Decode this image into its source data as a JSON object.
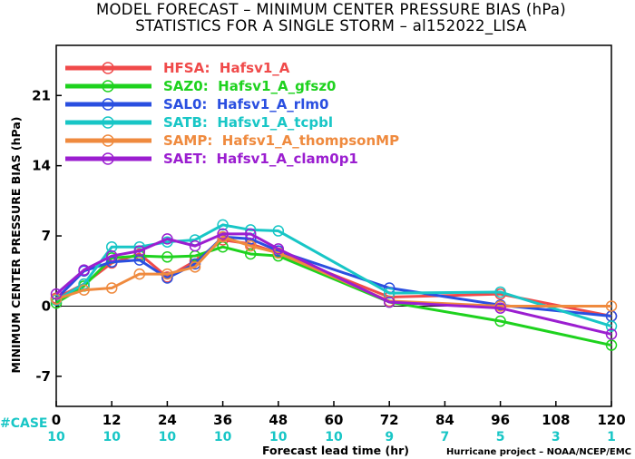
{
  "chart_data": {
    "type": "line",
    "title": "MODEL FORECAST – MINIMUM CENTER PRESSURE BIAS (hPa)",
    "subtitle": "STATISTICS FOR A SINGLE STORM – al152022_LISA",
    "xlabel": "Forecast lead time (hr)",
    "ylabel": "MINIMUM CENTER PRESSURE BIAS (hPa)",
    "xlim": [
      0,
      120
    ],
    "ylim": [
      -10,
      26
    ],
    "x_ticks": [
      0,
      12,
      24,
      36,
      48,
      60,
      72,
      84,
      96,
      108,
      120
    ],
    "y_ticks": [
      -7,
      0,
      7,
      14,
      21
    ],
    "zero_line": true,
    "grid": false,
    "legend_position": "top-left",
    "case_label": "#CASE",
    "case_counts": [
      {
        "x": 0,
        "n": "10"
      },
      {
        "x": 12,
        "n": "10"
      },
      {
        "x": 24,
        "n": "10"
      },
      {
        "x": 36,
        "n": "10"
      },
      {
        "x": 48,
        "n": "10"
      },
      {
        "x": 60,
        "n": "10"
      },
      {
        "x": 72,
        "n": "9"
      },
      {
        "x": 84,
        "n": "7"
      },
      {
        "x": 96,
        "n": "5"
      },
      {
        "x": 108,
        "n": "3"
      },
      {
        "x": 120,
        "n": "1"
      }
    ],
    "series": [
      {
        "name": "HFSA:  Hafsv1_A",
        "color": "#f04a4a",
        "points": [
          [
            0,
            0.8
          ],
          [
            6,
            2.2
          ],
          [
            12,
            4.3
          ],
          [
            18,
            5.2
          ],
          [
            24,
            2.9
          ],
          [
            30,
            4.5
          ],
          [
            36,
            6.6
          ],
          [
            42,
            6.2
          ],
          [
            48,
            5.3
          ],
          [
            72,
            0.9
          ],
          [
            96,
            1.2
          ],
          [
            120,
            -1.0
          ]
        ]
      },
      {
        "name": "SAZ0:  Hafsv1_A_gfsz0",
        "color": "#1ed21e",
        "points": [
          [
            0,
            0.3
          ],
          [
            6,
            2.0
          ],
          [
            12,
            4.8
          ],
          [
            18,
            5.0
          ],
          [
            24,
            4.9
          ],
          [
            30,
            5.0
          ],
          [
            36,
            5.9
          ],
          [
            42,
            5.2
          ],
          [
            48,
            5.0
          ],
          [
            72,
            0.4
          ],
          [
            96,
            -1.5
          ],
          [
            120,
            -3.9
          ]
        ]
      },
      {
        "name": "SAL0:  Hafsv1_A_rlm0",
        "color": "#2a4fe0",
        "points": [
          [
            0,
            0.7
          ],
          [
            6,
            3.5
          ],
          [
            12,
            4.4
          ],
          [
            18,
            4.6
          ],
          [
            24,
            2.8
          ],
          [
            30,
            4.2
          ],
          [
            36,
            6.9
          ],
          [
            42,
            6.7
          ],
          [
            48,
            5.5
          ],
          [
            72,
            1.8
          ],
          [
            96,
            0.1
          ],
          [
            120,
            -1.0
          ]
        ]
      },
      {
        "name": "SATB:  Hafsv1_A_tcpbl",
        "color": "#18c6c6",
        "points": [
          [
            0,
            0.6
          ],
          [
            6,
            2.2
          ],
          [
            12,
            5.9
          ],
          [
            18,
            5.9
          ],
          [
            24,
            6.4
          ],
          [
            30,
            6.6
          ],
          [
            36,
            8.1
          ],
          [
            42,
            7.6
          ],
          [
            48,
            7.5
          ],
          [
            72,
            1.3
          ],
          [
            96,
            1.4
          ],
          [
            120,
            -2.0
          ]
        ]
      },
      {
        "name": "SAMP:  Hafsv1_A_thompsonMP",
        "color": "#ef8a3e",
        "points": [
          [
            0,
            0.7
          ],
          [
            6,
            1.6
          ],
          [
            12,
            1.8
          ],
          [
            18,
            3.2
          ],
          [
            24,
            3.2
          ],
          [
            30,
            3.9
          ],
          [
            36,
            6.9
          ],
          [
            42,
            6.0
          ],
          [
            48,
            5.3
          ],
          [
            72,
            0.5
          ],
          [
            96,
            0.0
          ],
          [
            120,
            0.0
          ]
        ]
      },
      {
        "name": "SAET:  Hafsv1_A_clam0p1",
        "color": "#9b1ed0",
        "points": [
          [
            0,
            1.2
          ],
          [
            6,
            3.6
          ],
          [
            12,
            5.0
          ],
          [
            18,
            5.5
          ],
          [
            24,
            6.7
          ],
          [
            30,
            6.0
          ],
          [
            36,
            7.2
          ],
          [
            42,
            7.2
          ],
          [
            48,
            5.7
          ],
          [
            72,
            0.4
          ],
          [
            96,
            -0.2
          ],
          [
            120,
            -2.8
          ]
        ]
      }
    ]
  },
  "credit": "Hurricane project – NOAA/NCEP/EMC"
}
